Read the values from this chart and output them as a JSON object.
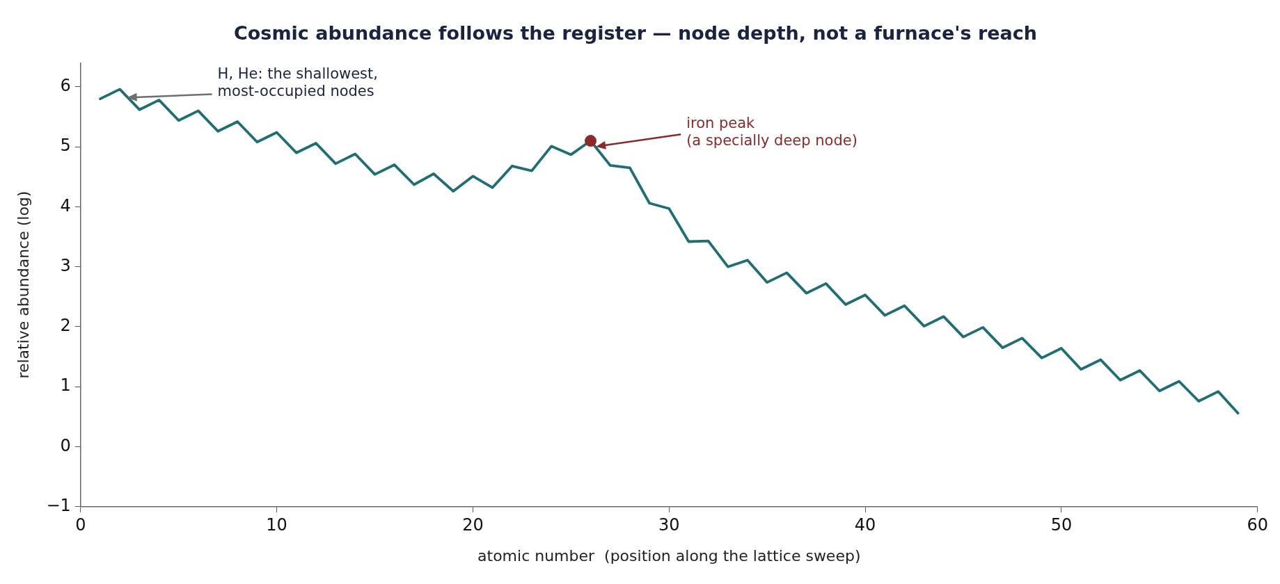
{
  "chart_data": {
    "type": "line",
    "title": "Cosmic abundance follows the register — node depth, not a furnace's reach",
    "xlabel": "atomic number  (position along the lattice sweep)",
    "ylabel": "relative abundance (log)",
    "x": [
      1,
      2,
      3,
      4,
      5,
      6,
      7,
      8,
      9,
      10,
      11,
      12,
      13,
      14,
      15,
      16,
      17,
      18,
      19,
      20,
      21,
      22,
      23,
      24,
      25,
      26,
      27,
      28,
      29,
      30,
      31,
      32,
      33,
      34,
      35,
      36,
      37,
      38,
      39,
      40,
      41,
      42,
      43,
      44,
      45,
      46,
      47,
      48,
      49,
      50,
      51,
      52,
      53,
      54,
      55,
      56,
      57,
      58,
      59
    ],
    "series": [
      {
        "color": "#1f6e73",
        "values": [
          5.8,
          5.96,
          5.62,
          5.78,
          5.44,
          5.6,
          5.26,
          5.42,
          5.08,
          5.24,
          4.9,
          5.06,
          4.72,
          4.88,
          4.54,
          4.7,
          4.37,
          4.55,
          4.26,
          4.51,
          4.32,
          4.68,
          4.6,
          5.01,
          4.87,
          5.1,
          4.69,
          4.65,
          4.06,
          3.97,
          3.42,
          3.43,
          3.0,
          3.11,
          2.74,
          2.9,
          2.56,
          2.72,
          2.37,
          2.53,
          2.19,
          2.35,
          2.01,
          2.17,
          1.83,
          1.99,
          1.65,
          1.81,
          1.48,
          1.64,
          1.29,
          1.45,
          1.11,
          1.27,
          0.93,
          1.09,
          0.76,
          0.92,
          0.56
        ]
      },
      {
        "type": "scatter",
        "color": "#8b2a2a",
        "x": [
          26
        ],
        "values": [
          5.1
        ],
        "marker": "circle"
      }
    ],
    "xlim": [
      0,
      60
    ],
    "xticks": [
      0,
      10,
      20,
      30,
      40,
      50,
      60
    ],
    "ylim": [
      -1,
      6.4
    ],
    "yticks": [
      {
        "value": -1,
        "label": "−1"
      },
      0,
      1,
      2,
      3,
      4,
      5,
      6
    ],
    "grid": false,
    "legend": false,
    "marker": "none",
    "line_style": "solid",
    "annotations": [
      {
        "text": "H, He: the shallowest,\nmost-occupied nodes",
        "x": 2.3,
        "y": 5.82
      },
      {
        "text": "iron peak\n(a specially deep node)",
        "x": 26.2,
        "y": 5.0
      }
    ]
  }
}
